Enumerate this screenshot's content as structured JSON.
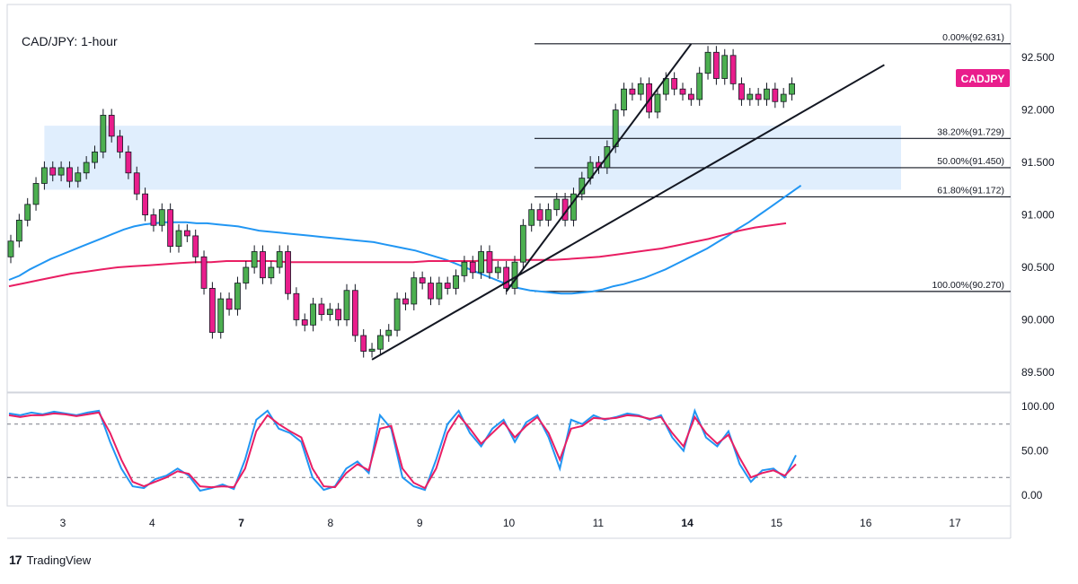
{
  "chart_data": {
    "type": "candlestick",
    "title": "CAD/JPY: 1-hour",
    "symbol_badge": "CADJPY",
    "price_axis": {
      "range": [
        89.32,
        92.98
      ],
      "ticks": [
        92.5,
        92.0,
        91.5,
        91.0,
        90.5,
        90.0,
        89.5
      ],
      "tick_labels": [
        "92.500",
        "92.000",
        "91.500",
        "91.000",
        "90.500",
        "90.000",
        "89.500"
      ]
    },
    "time_axis": {
      "labels": [
        "3",
        "4",
        "7",
        "8",
        "9",
        "10",
        "11",
        "14",
        "15",
        "16",
        "17"
      ]
    },
    "fib_levels": [
      {
        "label": "0.00%(92.631)",
        "price": 92.631
      },
      {
        "label": "38.20%(91.729)",
        "price": 91.729
      },
      {
        "label": "50.00%(91.450)",
        "price": 91.45
      },
      {
        "label": "61.80%(91.172)",
        "price": 91.172
      },
      {
        "label": "100.00%(90.270)",
        "price": 90.27
      }
    ],
    "resistance_zone": {
      "from_bar": 4,
      "to_bar": 999,
      "low": 91.24,
      "high": 91.85
    },
    "trendlines": [
      {
        "bar1": 43,
        "price1": 89.62,
        "bar2": 104,
        "price2": 92.43
      },
      {
        "bar1": 59,
        "price1": 90.27,
        "bar2": 81,
        "price2": 92.63
      }
    ],
    "candles": [
      [
        90.6,
        90.75
      ],
      [
        90.75,
        90.95
      ],
      [
        90.95,
        91.1
      ],
      [
        91.1,
        91.3
      ],
      [
        91.3,
        91.45
      ],
      [
        91.45,
        91.38
      ],
      [
        91.38,
        91.45
      ],
      [
        91.45,
        91.32
      ],
      [
        91.32,
        91.4
      ],
      [
        91.4,
        91.5
      ],
      [
        91.5,
        91.6
      ],
      [
        91.6,
        91.95
      ],
      [
        91.95,
        91.75
      ],
      [
        91.75,
        91.6
      ],
      [
        91.6,
        91.4
      ],
      [
        91.4,
        91.2
      ],
      [
        91.2,
        91.0
      ],
      [
        91.0,
        90.9
      ],
      [
        90.9,
        91.05
      ],
      [
        91.05,
        90.7
      ],
      [
        90.7,
        90.85
      ],
      [
        90.85,
        90.8
      ],
      [
        90.8,
        90.6
      ],
      [
        90.6,
        90.3
      ],
      [
        90.3,
        89.88
      ],
      [
        89.88,
        90.2
      ],
      [
        90.2,
        90.1
      ],
      [
        90.1,
        90.35
      ],
      [
        90.35,
        90.5
      ],
      [
        90.5,
        90.65
      ],
      [
        90.65,
        90.4
      ],
      [
        90.4,
        90.5
      ],
      [
        90.5,
        90.65
      ],
      [
        90.65,
        90.25
      ],
      [
        90.25,
        90.0
      ],
      [
        90.0,
        89.95
      ],
      [
        89.95,
        90.15
      ],
      [
        90.15,
        90.05
      ],
      [
        90.05,
        90.1
      ],
      [
        90.1,
        90.0
      ],
      [
        90.0,
        90.28
      ],
      [
        90.28,
        89.85
      ],
      [
        89.85,
        89.7
      ],
      [
        89.7,
        89.72
      ],
      [
        89.72,
        89.85
      ],
      [
        89.85,
        89.9
      ],
      [
        89.9,
        90.2
      ],
      [
        90.2,
        90.15
      ],
      [
        90.15,
        90.4
      ],
      [
        90.4,
        90.35
      ],
      [
        90.35,
        90.2
      ],
      [
        90.2,
        90.35
      ],
      [
        90.35,
        90.3
      ],
      [
        90.3,
        90.42
      ],
      [
        90.42,
        90.55
      ],
      [
        90.55,
        90.45
      ],
      [
        90.45,
        90.65
      ],
      [
        90.65,
        90.45
      ],
      [
        90.45,
        90.5
      ],
      [
        90.5,
        90.3
      ],
      [
        90.3,
        90.55
      ],
      [
        90.55,
        90.9
      ],
      [
        90.9,
        91.05
      ],
      [
        91.05,
        90.95
      ],
      [
        90.95,
        91.05
      ],
      [
        91.05,
        91.15
      ],
      [
        91.15,
        90.95
      ],
      [
        90.95,
        91.2
      ],
      [
        91.2,
        91.35
      ],
      [
        91.35,
        91.5
      ],
      [
        91.5,
        91.45
      ],
      [
        91.45,
        91.65
      ],
      [
        91.65,
        92.0
      ],
      [
        92.0,
        92.2
      ],
      [
        92.2,
        92.15
      ],
      [
        92.15,
        92.25
      ],
      [
        92.25,
        91.98
      ],
      [
        91.98,
        92.15
      ],
      [
        92.15,
        92.3
      ],
      [
        92.3,
        92.2
      ],
      [
        92.2,
        92.15
      ],
      [
        92.15,
        92.1
      ],
      [
        92.1,
        92.35
      ],
      [
        92.35,
        92.55
      ],
      [
        92.55,
        92.3
      ],
      [
        92.3,
        92.52
      ],
      [
        92.52,
        92.25
      ],
      [
        92.25,
        92.1
      ],
      [
        92.1,
        92.15
      ],
      [
        92.15,
        92.1
      ],
      [
        92.1,
        92.2
      ],
      [
        92.2,
        92.08
      ],
      [
        92.08,
        92.15
      ],
      [
        92.15,
        92.25
      ]
    ],
    "series": [
      {
        "name": "",
        "color": "#2196f3",
        "values": [
          90.38,
          90.42,
          90.48,
          90.53,
          90.58,
          90.62,
          90.66,
          90.7,
          90.74,
          90.78,
          90.82,
          90.86,
          90.89,
          90.91,
          90.92,
          90.93,
          90.93,
          90.93,
          90.92,
          90.92,
          90.91,
          90.9,
          90.89,
          90.87,
          90.85,
          90.84,
          90.83,
          90.82,
          90.81,
          90.8,
          90.79,
          90.78,
          90.77,
          90.76,
          90.75,
          90.74,
          90.72,
          90.7,
          90.68,
          90.66,
          90.63,
          90.6,
          90.57,
          90.53,
          90.49,
          90.45,
          90.41,
          90.37,
          90.33,
          90.3,
          90.28,
          90.27,
          90.26,
          90.25,
          90.25,
          90.26,
          90.27,
          90.29,
          90.32,
          90.34,
          90.37,
          90.4,
          90.44,
          90.48,
          90.53,
          90.58,
          90.63,
          90.68,
          90.74,
          90.8,
          90.87,
          90.93,
          91.0,
          91.07,
          91.14,
          91.21,
          91.28
        ]
      },
      {
        "name": "",
        "color": "#e91e63",
        "values": [
          90.32,
          90.35,
          90.38,
          90.41,
          90.44,
          90.46,
          90.48,
          90.5,
          90.51,
          90.52,
          90.53,
          90.54,
          90.55,
          90.55,
          90.56,
          90.56,
          90.56,
          90.56,
          90.55,
          90.55,
          90.55,
          90.55,
          90.55,
          90.55,
          90.55,
          90.55,
          90.55,
          90.56,
          90.56,
          90.56,
          90.56,
          90.57,
          90.57,
          90.57,
          90.57,
          90.57,
          90.58,
          90.59,
          90.6,
          90.62,
          90.64,
          90.66,
          90.68,
          90.71,
          90.74,
          90.77,
          90.81,
          90.85,
          90.88,
          90.9,
          90.92
        ]
      }
    ],
    "oscillator": {
      "axis_ticks": [
        100.0,
        50.0,
        0.0
      ],
      "axis_labels": [
        "100.00",
        "50.00",
        "0.00"
      ],
      "levels": [
        80,
        20
      ],
      "series": [
        {
          "name": "",
          "color": "#2196f3",
          "values": [
            92,
            90,
            93,
            91,
            94,
            92,
            90,
            93,
            95,
            60,
            30,
            10,
            8,
            18,
            22,
            30,
            22,
            5,
            8,
            12,
            7,
            40,
            85,
            95,
            75,
            70,
            60,
            20,
            6,
            10,
            30,
            38,
            25,
            90,
            75,
            20,
            10,
            6,
            40,
            80,
            95,
            70,
            55,
            75,
            85,
            60,
            82,
            90,
            65,
            30,
            85,
            80,
            90,
            85,
            88,
            92,
            90,
            85,
            90,
            65,
            50,
            95,
            65,
            55,
            72,
            35,
            15,
            28,
            30,
            20,
            45
          ]
        },
        {
          "name": "",
          "color": "#e91e63",
          "values": [
            90,
            88,
            90,
            90,
            92,
            91,
            89,
            91,
            93,
            70,
            40,
            15,
            10,
            15,
            20,
            27,
            24,
            10,
            9,
            10,
            9,
            30,
            72,
            90,
            80,
            72,
            65,
            30,
            10,
            9,
            25,
            35,
            28,
            75,
            78,
            30,
            14,
            8,
            30,
            70,
            90,
            75,
            58,
            70,
            82,
            65,
            78,
            88,
            70,
            40,
            75,
            78,
            87,
            86,
            87,
            90,
            89,
            86,
            88,
            70,
            55,
            88,
            70,
            58,
            68,
            42,
            20,
            25,
            28,
            22,
            35
          ]
        }
      ]
    },
    "brand": "TradingView"
  }
}
